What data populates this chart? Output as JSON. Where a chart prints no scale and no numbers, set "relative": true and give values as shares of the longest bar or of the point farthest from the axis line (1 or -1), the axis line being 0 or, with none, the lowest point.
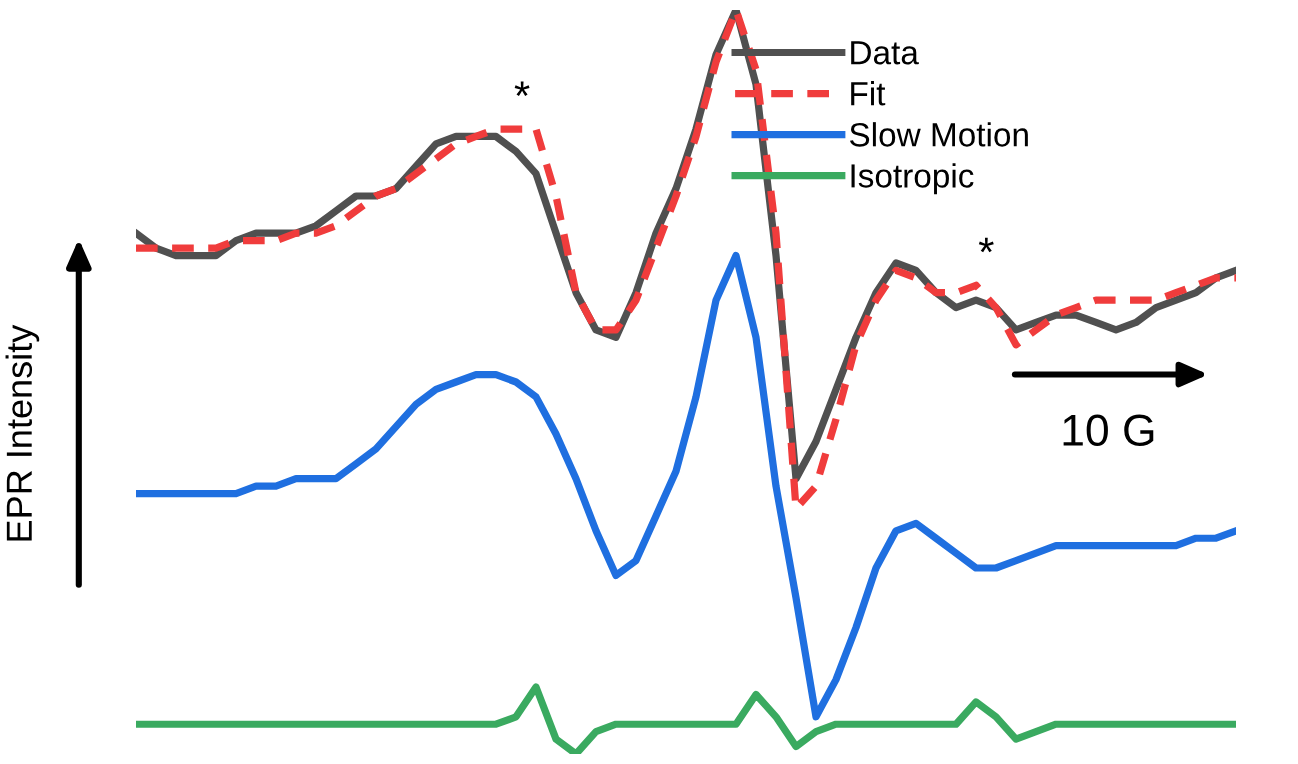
{
  "chart_data": {
    "type": "line",
    "relative": true,
    "ylabel": "EPR Intensity",
    "legend": "top right",
    "marker": "none",
    "annotations": [
      "*",
      "*",
      "10 G"
    ],
    "categories": [
      null,
      null,
      null,
      null,
      null,
      null,
      null,
      null,
      null,
      null,
      null,
      null,
      null,
      null,
      null,
      null,
      null,
      null,
      null,
      null,
      null,
      null,
      null,
      null,
      null,
      null,
      null,
      null,
      null,
      null,
      null,
      null,
      null,
      null,
      null,
      null,
      null,
      null,
      null,
      null,
      null,
      null,
      null,
      null,
      null,
      null,
      null,
      null,
      null,
      null,
      null,
      null,
      null,
      null,
      null,
      null
    ],
    "series": [
      {
        "name": "Data",
        "color": "#505050",
        "line_style": "solid",
        "values": [
          0.7,
          0.68,
          0.67,
          0.67,
          0.67,
          0.69,
          0.7,
          0.7,
          0.7,
          0.71,
          0.73,
          0.75,
          0.75,
          0.76,
          0.79,
          0.82,
          0.83,
          0.83,
          0.83,
          0.81,
          0.78,
          0.7,
          0.62,
          0.57,
          0.56,
          0.62,
          0.7,
          0.76,
          0.84,
          0.94,
          1.0,
          0.9,
          0.67,
          0.37,
          0.42,
          0.49,
          0.56,
          0.62,
          0.66,
          0.65,
          0.62,
          0.6,
          0.61,
          0.6,
          0.57,
          0.58,
          0.59,
          0.59,
          0.58,
          0.57,
          0.58,
          0.6,
          0.61,
          0.62,
          0.64,
          0.65
        ]
      },
      {
        "name": "Fit",
        "color": "#f03c3c",
        "line_style": "dashed",
        "values": [
          0.68,
          0.68,
          0.68,
          0.68,
          0.68,
          0.69,
          0.69,
          0.69,
          0.7,
          0.7,
          0.71,
          0.73,
          0.75,
          0.76,
          0.78,
          0.8,
          0.82,
          0.83,
          0.84,
          0.84,
          0.84,
          0.75,
          0.62,
          0.57,
          0.57,
          0.61,
          0.68,
          0.75,
          0.83,
          0.93,
          1.0,
          0.92,
          0.7,
          0.33,
          0.36,
          0.45,
          0.55,
          0.61,
          0.65,
          0.64,
          0.62,
          0.62,
          0.63,
          0.6,
          0.55,
          0.57,
          0.59,
          0.6,
          0.61,
          0.61,
          0.61,
          0.61,
          0.62,
          0.63,
          0.64,
          0.64
        ]
      },
      {
        "name": "Slow Motion",
        "color": "#1f6fe0",
        "line_style": "solid",
        "values": [
          0.35,
          0.35,
          0.35,
          0.35,
          0.35,
          0.35,
          0.36,
          0.36,
          0.37,
          0.37,
          0.37,
          0.39,
          0.41,
          0.44,
          0.47,
          0.49,
          0.5,
          0.51,
          0.51,
          0.5,
          0.48,
          0.43,
          0.37,
          0.3,
          0.24,
          0.26,
          0.32,
          0.38,
          0.48,
          0.61,
          0.67,
          0.56,
          0.36,
          0.21,
          0.05,
          0.1,
          0.17,
          0.25,
          0.3,
          0.31,
          0.29,
          0.27,
          0.25,
          0.25,
          0.26,
          0.27,
          0.28,
          0.28,
          0.28,
          0.28,
          0.28,
          0.28,
          0.28,
          0.29,
          0.29,
          0.3
        ]
      },
      {
        "name": "Isotropic",
        "color": "#3aaa60",
        "line_style": "solid",
        "values": [
          0.04,
          0.04,
          0.04,
          0.04,
          0.04,
          0.04,
          0.04,
          0.04,
          0.04,
          0.04,
          0.04,
          0.04,
          0.04,
          0.04,
          0.04,
          0.04,
          0.04,
          0.04,
          0.04,
          0.05,
          0.09,
          0.02,
          0,
          0.03,
          0.04,
          0.04,
          0.04,
          0.04,
          0.04,
          0.04,
          0.04,
          0.08,
          0.05,
          0.01,
          0.03,
          0.04,
          0.04,
          0.04,
          0.04,
          0.04,
          0.04,
          0.04,
          0.07,
          0.05,
          0.02,
          0.03,
          0.04,
          0.04,
          0.04,
          0.04,
          0.04,
          0.04,
          0.04,
          0.04,
          0.04,
          0.04
        ]
      }
    ]
  }
}
